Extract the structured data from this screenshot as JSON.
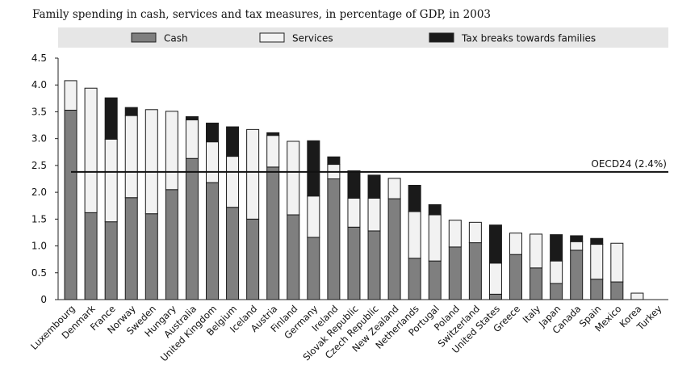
{
  "chart_data": {
    "type": "bar",
    "stacked": true,
    "title": "Family spending in cash, services and tax measures, in percentage of GDP, in 2003",
    "xlabel": "",
    "ylabel": "",
    "ylim": [
      0,
      4.5
    ],
    "yticks": [
      "0",
      "0.5",
      "1.0",
      "1.5",
      "2.0",
      "2.5",
      "3.0",
      "3.5",
      "4.0",
      "4.5"
    ],
    "grid": false,
    "legend_position": "top",
    "categories": [
      "Luxembourg",
      "Denmark",
      "France",
      "Norway",
      "Sweden",
      "Hungary",
      "Australia",
      "United Kingdom",
      "Belgium",
      "Iceland",
      "Austria",
      "Finland",
      "Germany",
      "Ireland",
      "Slovak Republic",
      "Czech Republic",
      "New Zealand",
      "Netherlands",
      "Portugal",
      "Poland",
      "Switzerland",
      "United States",
      "Greece",
      "Italy",
      "Japan",
      "Canada",
      "Spain",
      "Mexico",
      "Korea",
      "Turkey"
    ],
    "series": [
      {
        "name": "Cash",
        "color": "#7f7f7f",
        "values": [
          3.53,
          1.62,
          1.45,
          1.9,
          1.6,
          2.05,
          2.63,
          2.18,
          1.72,
          1.5,
          2.47,
          1.58,
          1.16,
          2.25,
          1.35,
          1.28,
          1.88,
          0.77,
          0.72,
          0.98,
          1.06,
          0.1,
          0.84,
          0.59,
          0.3,
          0.92,
          0.38,
          0.33,
          0.0,
          0.0
        ]
      },
      {
        "name": "Services",
        "color": "#f2f2f2",
        "values": [
          0.55,
          2.32,
          1.54,
          1.53,
          1.94,
          1.46,
          0.72,
          0.76,
          0.95,
          1.67,
          0.59,
          1.37,
          0.77,
          0.27,
          0.54,
          0.61,
          0.38,
          0.87,
          0.86,
          0.5,
          0.38,
          0.58,
          0.4,
          0.63,
          0.42,
          0.16,
          0.65,
          0.72,
          0.12,
          0.0
        ]
      },
      {
        "name": "Tax breaks towards families",
        "color": "#1a1a1a",
        "values": [
          0.0,
          0.0,
          0.77,
          0.15,
          0.0,
          0.0,
          0.06,
          0.35,
          0.55,
          0.0,
          0.05,
          0.0,
          1.03,
          0.14,
          0.51,
          0.43,
          0.0,
          0.49,
          0.19,
          0.0,
          0.0,
          0.71,
          0.0,
          0.0,
          0.49,
          0.11,
          0.11,
          0.0,
          0.0,
          0.0
        ]
      }
    ],
    "reference_line": {
      "label": "OECD24 (2.4%)",
      "value": 2.38
    }
  }
}
